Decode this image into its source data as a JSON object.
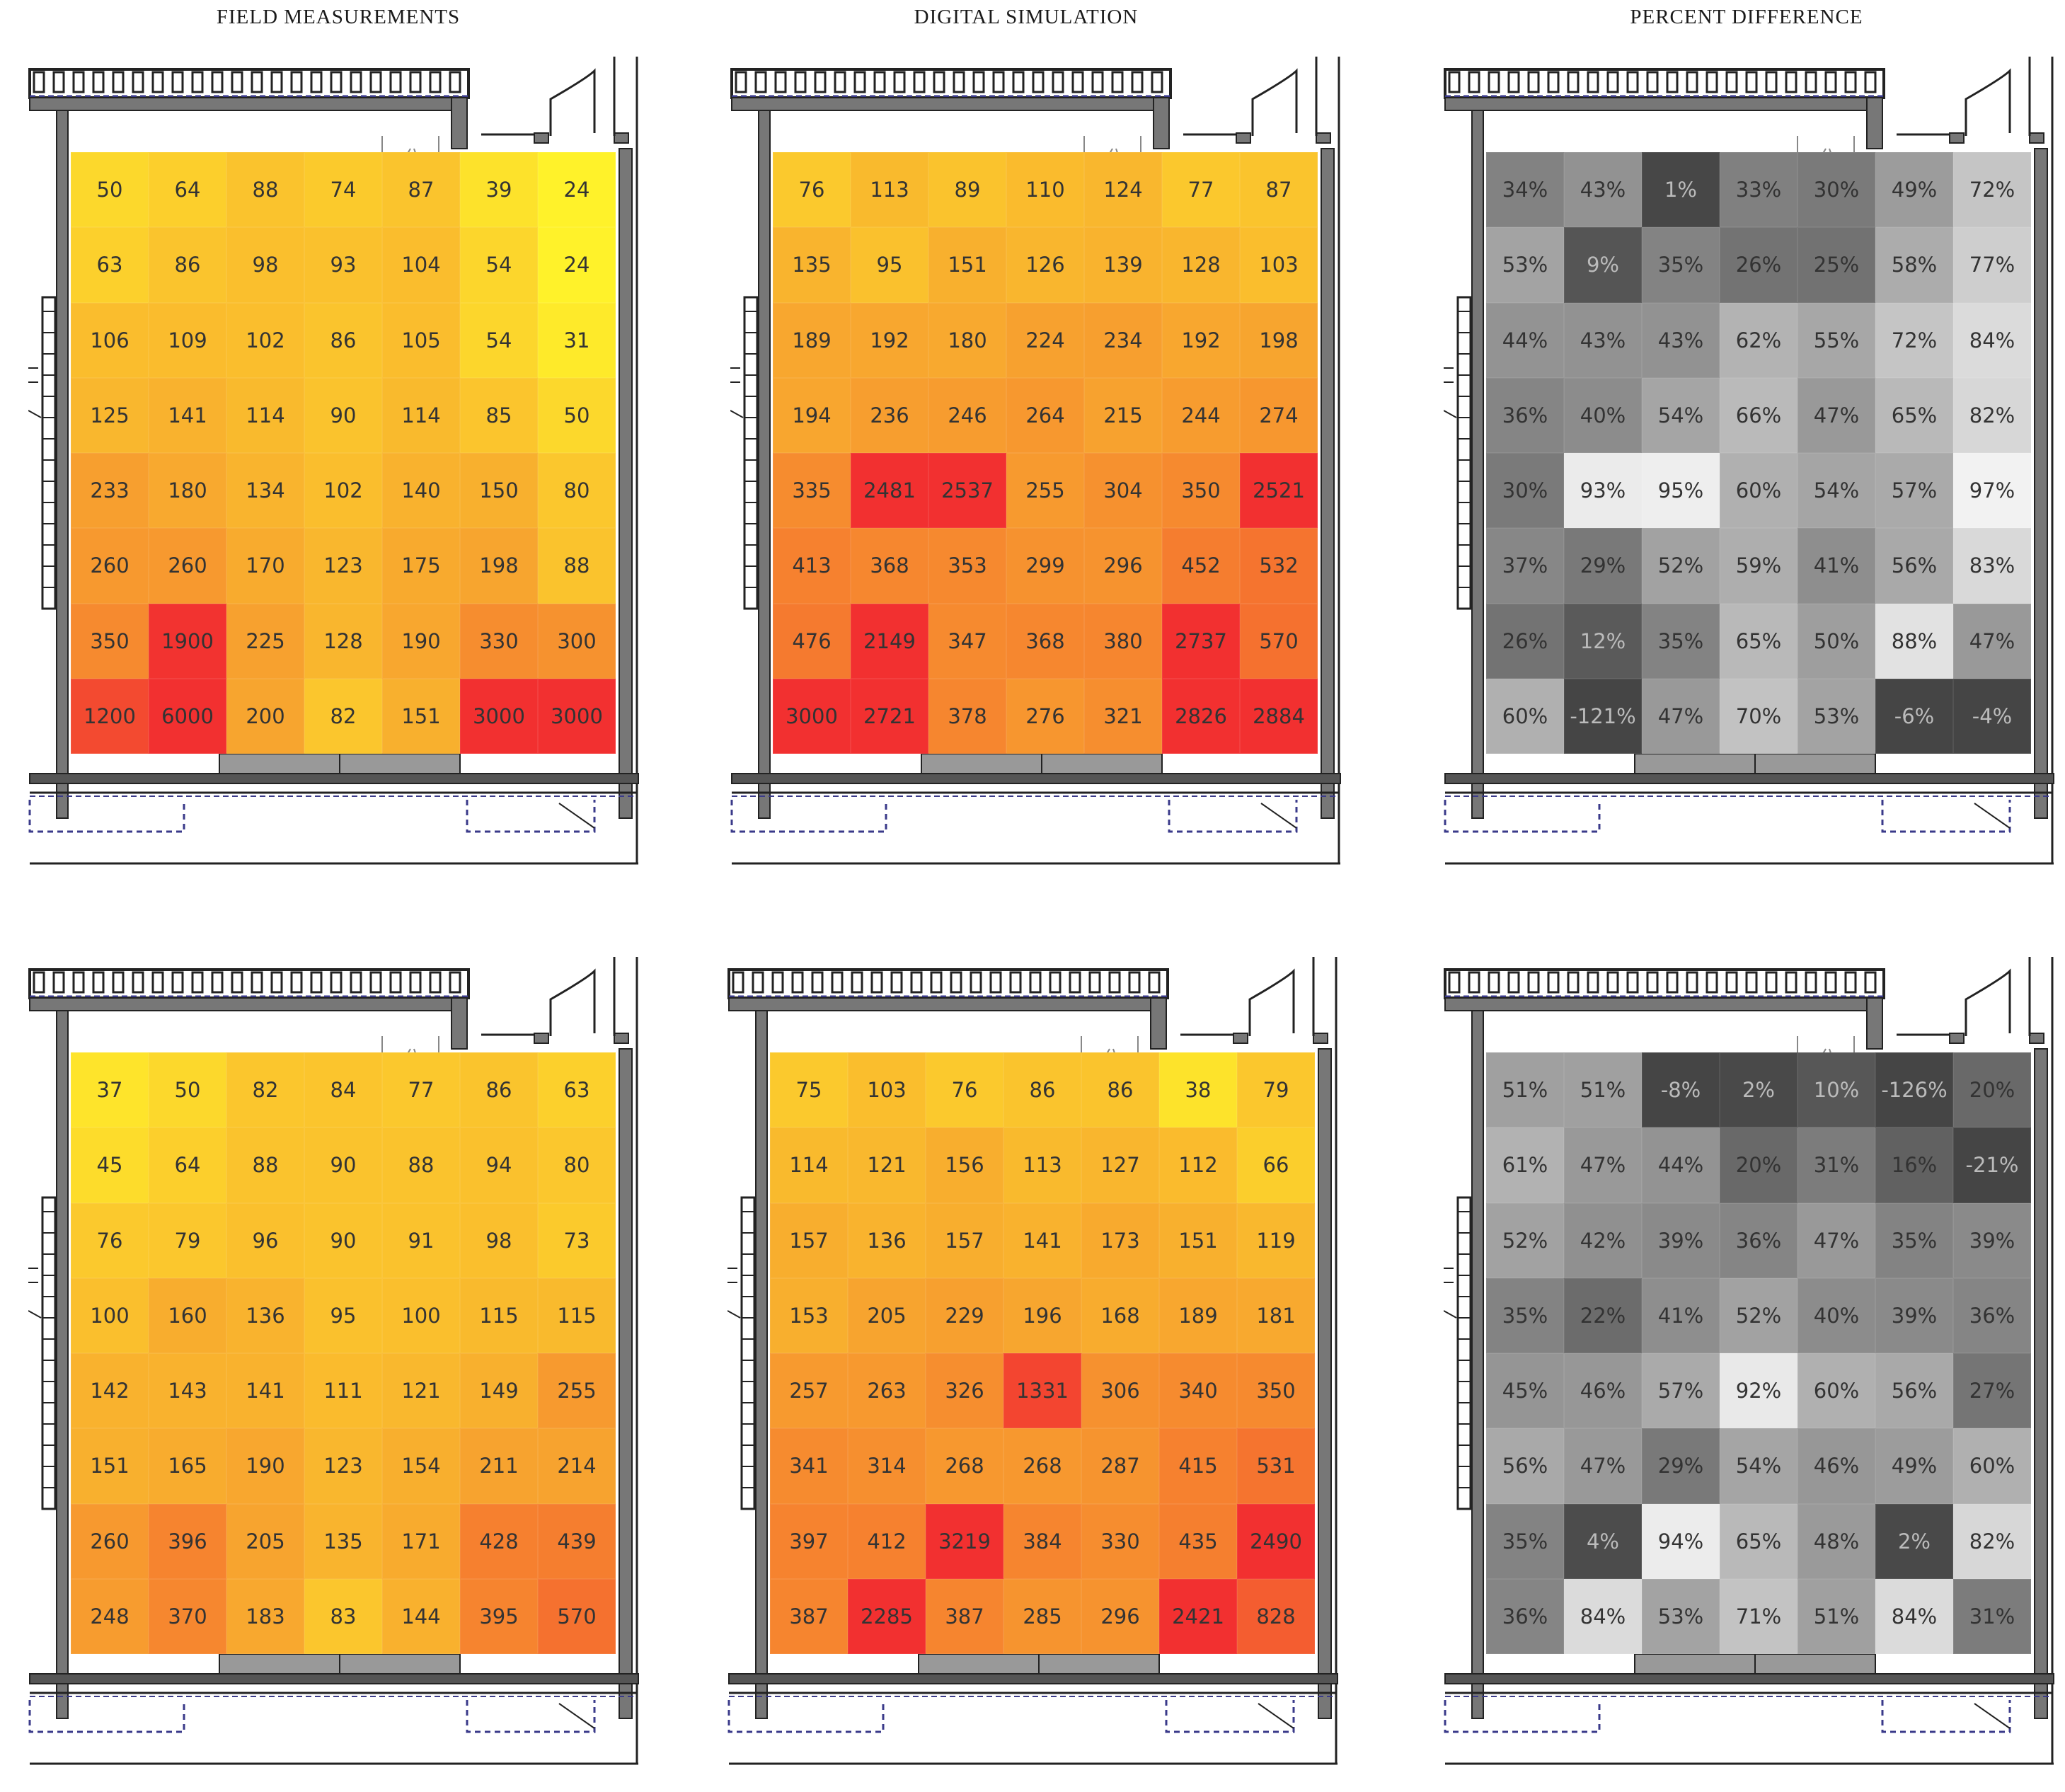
{
  "column_titles": [
    "FIELD MEASUREMENTS",
    "DIGITAL SIMULATION",
    "PERCENT DIFFERENCE"
  ],
  "colors": {
    "heat_low": "#fff22a",
    "heat_mid": "#f7a12f",
    "heat_high": "#f23030",
    "diff_light": "#f7f7f7",
    "diff_dark": "#454545",
    "plan_wall": "#777777",
    "plan_line": "#222222",
    "plan_dash": "#3a3a8a"
  },
  "chart_data": [
    {
      "type": "heatmap",
      "row": 1,
      "column": "FIELD MEASUREMENTS",
      "color_scale": "heat",
      "rows": 8,
      "cols": 7,
      "values": [
        [
          50,
          64,
          88,
          74,
          87,
          39,
          24
        ],
        [
          63,
          86,
          98,
          93,
          104,
          54,
          24
        ],
        [
          106,
          109,
          102,
          86,
          105,
          54,
          31
        ],
        [
          125,
          141,
          114,
          90,
          114,
          85,
          50
        ],
        [
          233,
          180,
          134,
          102,
          140,
          150,
          80
        ],
        [
          260,
          260,
          170,
          123,
          175,
          198,
          88
        ],
        [
          350,
          1900,
          225,
          128,
          190,
          330,
          300
        ],
        [
          1200,
          6000,
          200,
          82,
          151,
          3000,
          3000
        ]
      ]
    },
    {
      "type": "heatmap",
      "row": 1,
      "column": "DIGITAL SIMULATION",
      "color_scale": "heat",
      "rows": 8,
      "cols": 7,
      "values": [
        [
          76,
          113,
          89,
          110,
          124,
          77,
          87
        ],
        [
          135,
          95,
          151,
          126,
          139,
          128,
          103
        ],
        [
          189,
          192,
          180,
          224,
          234,
          192,
          198
        ],
        [
          194,
          236,
          246,
          264,
          215,
          244,
          274
        ],
        [
          335,
          2481,
          2537,
          255,
          304,
          350,
          2521
        ],
        [
          413,
          368,
          353,
          299,
          296,
          452,
          532
        ],
        [
          476,
          2149,
          347,
          368,
          380,
          2737,
          570
        ],
        [
          3000,
          2721,
          378,
          276,
          321,
          2826,
          2884
        ]
      ]
    },
    {
      "type": "heatmap",
      "row": 1,
      "column": "PERCENT DIFFERENCE",
      "color_scale": "gray",
      "unit": "%",
      "rows": 8,
      "cols": 7,
      "values": [
        [
          34,
          43,
          1,
          33,
          30,
          49,
          72
        ],
        [
          53,
          9,
          35,
          26,
          25,
          58,
          77
        ],
        [
          44,
          43,
          43,
          62,
          55,
          72,
          84
        ],
        [
          36,
          40,
          54,
          66,
          47,
          65,
          82
        ],
        [
          30,
          93,
          95,
          60,
          54,
          57,
          97
        ],
        [
          37,
          29,
          52,
          59,
          41,
          56,
          83
        ],
        [
          26,
          12,
          35,
          65,
          50,
          88,
          47
        ],
        [
          60,
          -121,
          47,
          70,
          53,
          -6,
          -4
        ]
      ]
    },
    {
      "type": "heatmap",
      "row": 2,
      "column": "FIELD MEASUREMENTS",
      "color_scale": "heat",
      "rows": 8,
      "cols": 7,
      "values": [
        [
          37,
          50,
          82,
          84,
          77,
          86,
          63
        ],
        [
          45,
          64,
          88,
          90,
          88,
          94,
          80
        ],
        [
          76,
          79,
          96,
          90,
          91,
          98,
          73
        ],
        [
          100,
          160,
          136,
          95,
          100,
          115,
          115
        ],
        [
          142,
          143,
          141,
          111,
          121,
          149,
          255
        ],
        [
          151,
          165,
          190,
          123,
          154,
          211,
          214
        ],
        [
          260,
          396,
          205,
          135,
          171,
          428,
          439
        ],
        [
          248,
          370,
          183,
          83,
          144,
          395,
          570
        ]
      ]
    },
    {
      "type": "heatmap",
      "row": 2,
      "column": "DIGITAL SIMULATION",
      "color_scale": "heat",
      "rows": 8,
      "cols": 7,
      "values": [
        [
          75,
          103,
          76,
          86,
          86,
          38,
          79
        ],
        [
          114,
          121,
          156,
          113,
          127,
          112,
          66
        ],
        [
          157,
          136,
          157,
          141,
          173,
          151,
          119
        ],
        [
          153,
          205,
          229,
          196,
          168,
          189,
          181
        ],
        [
          257,
          263,
          326,
          1331,
          306,
          340,
          350
        ],
        [
          341,
          314,
          268,
          268,
          287,
          415,
          531
        ],
        [
          397,
          412,
          3219,
          384,
          330,
          435,
          2490
        ],
        [
          387,
          2285,
          387,
          285,
          296,
          2421,
          828
        ]
      ]
    },
    {
      "type": "heatmap",
      "row": 2,
      "column": "PERCENT DIFFERENCE",
      "color_scale": "gray",
      "unit": "%",
      "rows": 8,
      "cols": 7,
      "values": [
        [
          51,
          51,
          -8,
          2,
          10,
          -126,
          20
        ],
        [
          61,
          47,
          44,
          20,
          31,
          16,
          -21
        ],
        [
          52,
          42,
          39,
          36,
          47,
          35,
          39
        ],
        [
          35,
          22,
          41,
          52,
          40,
          39,
          36
        ],
        [
          45,
          46,
          57,
          92,
          60,
          56,
          27
        ],
        [
          56,
          47,
          29,
          54,
          46,
          49,
          60
        ],
        [
          35,
          4,
          94,
          65,
          48,
          2,
          82
        ],
        [
          36,
          84,
          53,
          71,
          51,
          84,
          31
        ]
      ]
    }
  ]
}
